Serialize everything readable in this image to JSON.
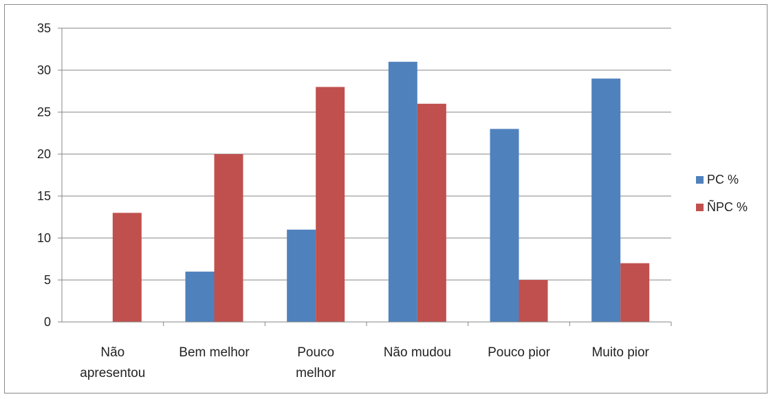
{
  "chart_data": {
    "type": "bar",
    "title": "",
    "xlabel": "",
    "ylabel": "",
    "categories": [
      [
        "Não",
        "apresentou"
      ],
      [
        "Bem melhor"
      ],
      [
        "Pouco",
        "melhor"
      ],
      [
        "Não mudou"
      ],
      [
        "Pouco pior"
      ],
      [
        "Muito pior"
      ]
    ],
    "series": [
      {
        "name": "PC %",
        "color": "#4f81bd",
        "values": [
          0,
          6,
          11,
          31,
          23,
          29
        ]
      },
      {
        "name": "ÑPC %",
        "color": "#c0504d",
        "values": [
          13,
          20,
          28,
          26,
          5,
          7
        ]
      }
    ],
    "ylim": [
      0,
      35
    ],
    "yticks": [
      0,
      5,
      10,
      15,
      20,
      25,
      30,
      35
    ],
    "grid": true,
    "legend": "right"
  }
}
